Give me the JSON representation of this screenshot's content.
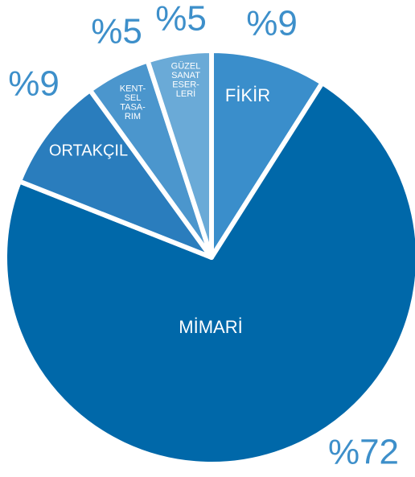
{
  "chart_data": {
    "type": "pie",
    "categories": [
      [
        "FİKİR"
      ],
      [
        "MİMARİ"
      ],
      [
        "ORTAKÇIL"
      ],
      [
        "KENT-",
        "SEL",
        "TASA-",
        "RIM"
      ],
      [
        "GÜZEL",
        "SANAT",
        "ESER-",
        "LERİ"
      ]
    ],
    "values": [
      9,
      72,
      9,
      5,
      5
    ],
    "value_labels": [
      "%9",
      "%72",
      "%9",
      "%5",
      "%5"
    ],
    "colors": [
      "#3a8ecb",
      "#0068a9",
      "#2a7dbd",
      "#4b96cd",
      "#6aaad7"
    ]
  }
}
